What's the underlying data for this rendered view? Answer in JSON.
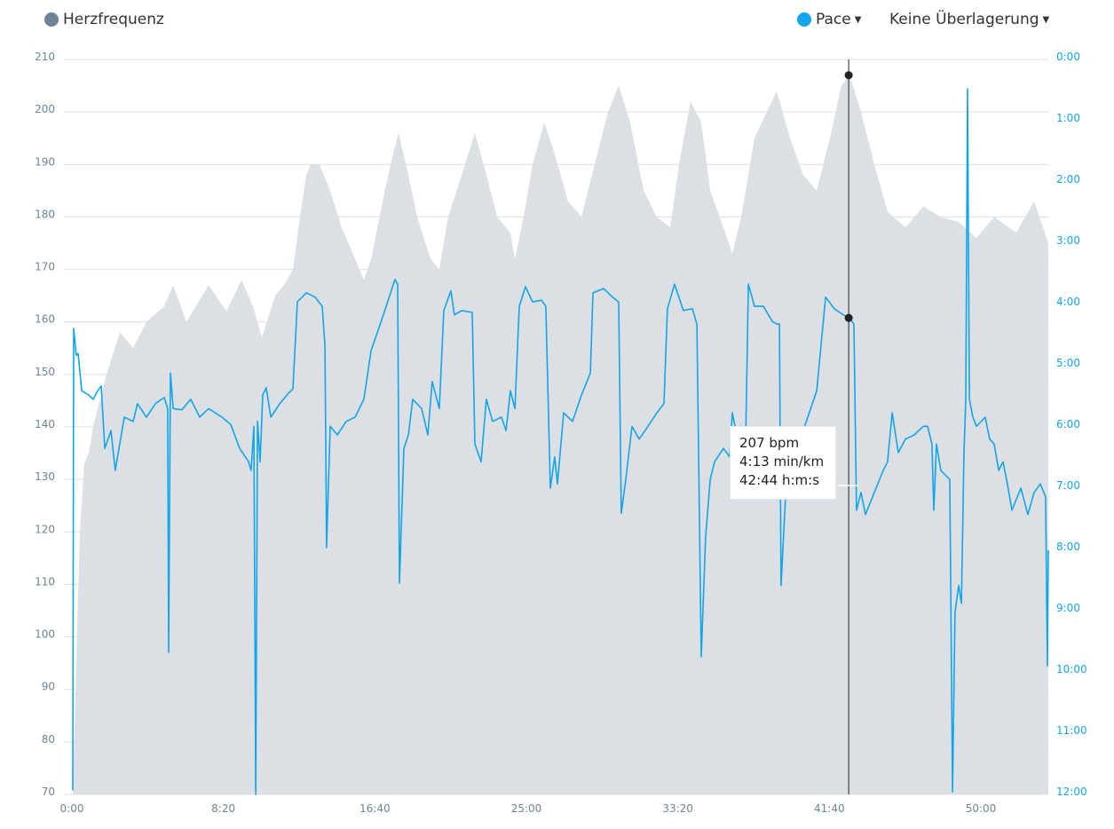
{
  "legend": {
    "hr_label": "Herzfrequenz",
    "pace_label": "Pace",
    "overlay_label": "Keine Überlagerung"
  },
  "colors": {
    "hr_dot": "#6e8496",
    "hr_area": "#dcdfe3",
    "pace": "#12a5ea",
    "grid": "#dedede"
  },
  "tooltip": {
    "hr": "207 bpm",
    "pace": "4:13 min/km",
    "time": "42:44 h:m:s"
  },
  "chart_data": {
    "type": "line",
    "title": "",
    "xlabel": "",
    "ylabel": "Herzfrequenz",
    "y2label": "Pace",
    "xlim": [
      0,
      53.71
    ],
    "ylim": [
      70,
      210
    ],
    "y2lim": [
      0,
      12
    ],
    "y2_inverted": true,
    "grid": true,
    "x_ticks": [
      "0:00",
      "8:20",
      "16:40",
      "25:00",
      "33:20",
      "41:40",
      "50:00"
    ],
    "x_tick_values": [
      0,
      8.333,
      16.667,
      25,
      33.333,
      41.667,
      50
    ],
    "y_ticks": [
      210,
      200,
      190,
      180,
      170,
      160,
      150,
      140,
      130,
      120,
      110,
      100,
      90,
      80,
      70
    ],
    "y2_ticks": [
      "0:00",
      "1:00",
      "2:00",
      "3:00",
      "4:00",
      "5:00",
      "6:00",
      "7:00",
      "8:00",
      "9:00",
      "10:00",
      "11:00",
      "12:00"
    ],
    "cursor_time": 42.73,
    "cursor_values": {
      "hr": 207,
      "pace": 4.22
    },
    "series": [
      {
        "name": "Herzfrequenz",
        "type": "area",
        "unit": "bpm",
        "points": [
          [
            0.05,
            70
          ],
          [
            0.44,
            120
          ],
          [
            0.68,
            133
          ],
          [
            0.93,
            135
          ],
          [
            1.17,
            140
          ],
          [
            1.9,
            150
          ],
          [
            2.64,
            158
          ],
          [
            3.37,
            155
          ],
          [
            4.1,
            160
          ],
          [
            5.08,
            163
          ],
          [
            5.57,
            167
          ],
          [
            6.3,
            160
          ],
          [
            7.52,
            167
          ],
          [
            8.5,
            162
          ],
          [
            9.33,
            168
          ],
          [
            9.96,
            163
          ],
          [
            10.45,
            157
          ],
          [
            11.18,
            165
          ],
          [
            11.67,
            167
          ],
          [
            12.16,
            170
          ],
          [
            12.55,
            180
          ],
          [
            12.89,
            188
          ],
          [
            13.13,
            190
          ],
          [
            13.62,
            190
          ],
          [
            14.21,
            185
          ],
          [
            14.84,
            178
          ],
          [
            15.58,
            172
          ],
          [
            16.06,
            168
          ],
          [
            16.46,
            172
          ],
          [
            17.04,
            182
          ],
          [
            17.53,
            190
          ],
          [
            17.97,
            196
          ],
          [
            18.51,
            188
          ],
          [
            18.99,
            180
          ],
          [
            19.73,
            172
          ],
          [
            20.21,
            170
          ],
          [
            20.7,
            180
          ],
          [
            21.44,
            188
          ],
          [
            22.17,
            196
          ],
          [
            22.8,
            188
          ],
          [
            23.39,
            180
          ],
          [
            24.12,
            177
          ],
          [
            24.37,
            172
          ],
          [
            24.85,
            180
          ],
          [
            25.34,
            190
          ],
          [
            25.98,
            198
          ],
          [
            26.56,
            192
          ],
          [
            27.29,
            183
          ],
          [
            28.03,
            180
          ],
          [
            28.76,
            190
          ],
          [
            29.49,
            200
          ],
          [
            30.08,
            205
          ],
          [
            30.71,
            198
          ],
          [
            31.45,
            185
          ],
          [
            32.18,
            180
          ],
          [
            32.91,
            178
          ],
          [
            33.4,
            190
          ],
          [
            34.03,
            202
          ],
          [
            34.62,
            198
          ],
          [
            35.11,
            185
          ],
          [
            35.84,
            178
          ],
          [
            36.33,
            173
          ],
          [
            36.82,
            180
          ],
          [
            37.55,
            195
          ],
          [
            38.77,
            204
          ],
          [
            39.5,
            195
          ],
          [
            40.23,
            188
          ],
          [
            40.97,
            185
          ],
          [
            41.7,
            195
          ],
          [
            42.33,
            205
          ],
          [
            42.77,
            207
          ],
          [
            43.41,
            200
          ],
          [
            44.14,
            190
          ],
          [
            44.87,
            181
          ],
          [
            45.85,
            178
          ],
          [
            46.83,
            182
          ],
          [
            47.8,
            180
          ],
          [
            48.78,
            179
          ],
          [
            49.76,
            176
          ],
          [
            50.73,
            180
          ],
          [
            51.95,
            177
          ],
          [
            52.93,
            183
          ],
          [
            53.71,
            175
          ]
        ]
      },
      {
        "name": "Pace",
        "type": "line",
        "unit": "min/km",
        "points": [
          [
            0.05,
            11.93
          ],
          [
            0.1,
            4.39
          ],
          [
            0.24,
            4.83
          ],
          [
            0.34,
            4.8
          ],
          [
            0.54,
            5.41
          ],
          [
            0.93,
            5.48
          ],
          [
            1.17,
            5.55
          ],
          [
            1.42,
            5.41
          ],
          [
            1.61,
            5.33
          ],
          [
            1.81,
            6.35
          ],
          [
            2.15,
            6.06
          ],
          [
            2.39,
            6.71
          ],
          [
            2.88,
            5.84
          ],
          [
            3.37,
            5.91
          ],
          [
            3.61,
            5.62
          ],
          [
            4.1,
            5.84
          ],
          [
            4.59,
            5.62
          ],
          [
            5.08,
            5.52
          ],
          [
            5.27,
            5.7
          ],
          [
            5.32,
            9.68
          ],
          [
            5.42,
            5.12
          ],
          [
            5.57,
            5.7
          ],
          [
            6.05,
            5.72
          ],
          [
            6.54,
            5.55
          ],
          [
            7.03,
            5.84
          ],
          [
            7.52,
            5.7
          ],
          [
            8.25,
            5.84
          ],
          [
            8.74,
            5.96
          ],
          [
            9.23,
            6.35
          ],
          [
            9.72,
            6.57
          ],
          [
            9.86,
            6.71
          ],
          [
            10.01,
            5.99
          ],
          [
            10.11,
            12
          ],
          [
            10.21,
            5.91
          ],
          [
            10.35,
            6.57
          ],
          [
            10.5,
            5.48
          ],
          [
            10.69,
            5.36
          ],
          [
            10.94,
            5.84
          ],
          [
            11.43,
            5.62
          ],
          [
            11.91,
            5.45
          ],
          [
            12.16,
            5.38
          ],
          [
            12.4,
            3.96
          ],
          [
            12.89,
            3.81
          ],
          [
            13.38,
            3.88
          ],
          [
            13.77,
            4.03
          ],
          [
            13.92,
            4.68
          ],
          [
            14.01,
            7.97
          ],
          [
            14.21,
            5.99
          ],
          [
            14.6,
            6.13
          ],
          [
            15.09,
            5.91
          ],
          [
            15.58,
            5.84
          ],
          [
            16.06,
            5.55
          ],
          [
            16.46,
            4.75
          ],
          [
            16.8,
            4.46
          ],
          [
            17.29,
            4.03
          ],
          [
            17.77,
            3.59
          ],
          [
            17.92,
            3.67
          ],
          [
            18.02,
            8.55
          ],
          [
            18.26,
            6.35
          ],
          [
            18.51,
            6.13
          ],
          [
            18.75,
            5.55
          ],
          [
            19.24,
            5.7
          ],
          [
            19.58,
            6.13
          ],
          [
            19.82,
            5.26
          ],
          [
            20.21,
            5.7
          ],
          [
            20.46,
            4.1
          ],
          [
            20.85,
            3.78
          ],
          [
            21.04,
            4.17
          ],
          [
            21.44,
            4.1
          ],
          [
            22.02,
            4.13
          ],
          [
            22.17,
            6.28
          ],
          [
            22.51,
            6.57
          ],
          [
            22.8,
            5.55
          ],
          [
            23.14,
            5.91
          ],
          [
            23.63,
            5.84
          ],
          [
            23.88,
            6.06
          ],
          [
            24.12,
            5.41
          ],
          [
            24.37,
            5.7
          ],
          [
            24.61,
            4.03
          ],
          [
            24.95,
            3.71
          ],
          [
            25.34,
            3.96
          ],
          [
            25.83,
            3.93
          ],
          [
            26.07,
            4.03
          ],
          [
            26.32,
            7.0
          ],
          [
            26.56,
            6.49
          ],
          [
            26.71,
            6.93
          ],
          [
            27.05,
            5.77
          ],
          [
            27.54,
            5.91
          ],
          [
            28.03,
            5.48
          ],
          [
            28.52,
            5.12
          ],
          [
            28.66,
            3.81
          ],
          [
            29.25,
            3.74
          ],
          [
            29.74,
            3.88
          ],
          [
            30.08,
            3.96
          ],
          [
            30.22,
            7.41
          ],
          [
            30.47,
            6.86
          ],
          [
            30.81,
            5.99
          ],
          [
            31.2,
            6.2
          ],
          [
            31.69,
            5.99
          ],
          [
            32.18,
            5.77
          ],
          [
            32.57,
            5.62
          ],
          [
            32.76,
            4.07
          ],
          [
            33.15,
            3.67
          ],
          [
            33.64,
            4.1
          ],
          [
            34.13,
            4.07
          ],
          [
            34.38,
            4.32
          ],
          [
            34.62,
            9.75
          ],
          [
            34.86,
            7.8
          ],
          [
            35.11,
            6.86
          ],
          [
            35.35,
            6.57
          ],
          [
            35.84,
            6.35
          ],
          [
            36.18,
            6.49
          ],
          [
            36.33,
            5.77
          ],
          [
            36.57,
            6.13
          ],
          [
            36.82,
            5.99
          ],
          [
            37.06,
            6.28
          ],
          [
            37.21,
            3.67
          ],
          [
            37.55,
            4.03
          ],
          [
            38.04,
            4.03
          ],
          [
            38.53,
            4.28
          ],
          [
            38.77,
            4.32
          ],
          [
            38.92,
            4.32
          ],
          [
            39.01,
            8.59
          ],
          [
            39.26,
            7.14
          ],
          [
            39.5,
            6.86
          ],
          [
            39.99,
            6.28
          ],
          [
            40.48,
            5.84
          ],
          [
            40.97,
            5.41
          ],
          [
            41.46,
            3.88
          ],
          [
            41.94,
            4.07
          ],
          [
            42.43,
            4.17
          ],
          [
            42.77,
            4.22
          ],
          [
            43.02,
            4.32
          ],
          [
            43.16,
            7.36
          ],
          [
            43.41,
            7.07
          ],
          [
            43.65,
            7.43
          ],
          [
            44.14,
            7.07
          ],
          [
            44.63,
            6.71
          ],
          [
            44.87,
            6.57
          ],
          [
            45.12,
            5.77
          ],
          [
            45.46,
            6.42
          ],
          [
            45.85,
            6.2
          ],
          [
            46.34,
            6.13
          ],
          [
            46.83,
            5.99
          ],
          [
            47.07,
            5.99
          ],
          [
            47.31,
            6.28
          ],
          [
            47.41,
            7.36
          ],
          [
            47.56,
            6.28
          ],
          [
            47.8,
            6.71
          ],
          [
            48.29,
            6.86
          ],
          [
            48.44,
            11.96
          ],
          [
            48.58,
            9.03
          ],
          [
            48.78,
            8.59
          ],
          [
            48.93,
            8.88
          ],
          [
            49.07,
            6.42
          ],
          [
            49.17,
            5.55
          ],
          [
            49.27,
            0.48
          ],
          [
            49.37,
            5.55
          ],
          [
            49.56,
            5.84
          ],
          [
            49.76,
            5.99
          ],
          [
            50.24,
            5.84
          ],
          [
            50.49,
            6.2
          ],
          [
            50.73,
            6.28
          ],
          [
            50.98,
            6.71
          ],
          [
            51.22,
            6.57
          ],
          [
            51.46,
            6.93
          ],
          [
            51.71,
            7.36
          ],
          [
            52.2,
            7.0
          ],
          [
            52.59,
            7.43
          ],
          [
            52.93,
            7.07
          ],
          [
            53.27,
            6.93
          ],
          [
            53.56,
            7.14
          ],
          [
            53.66,
            9.9
          ],
          [
            53.71,
            8.01
          ]
        ]
      }
    ]
  }
}
